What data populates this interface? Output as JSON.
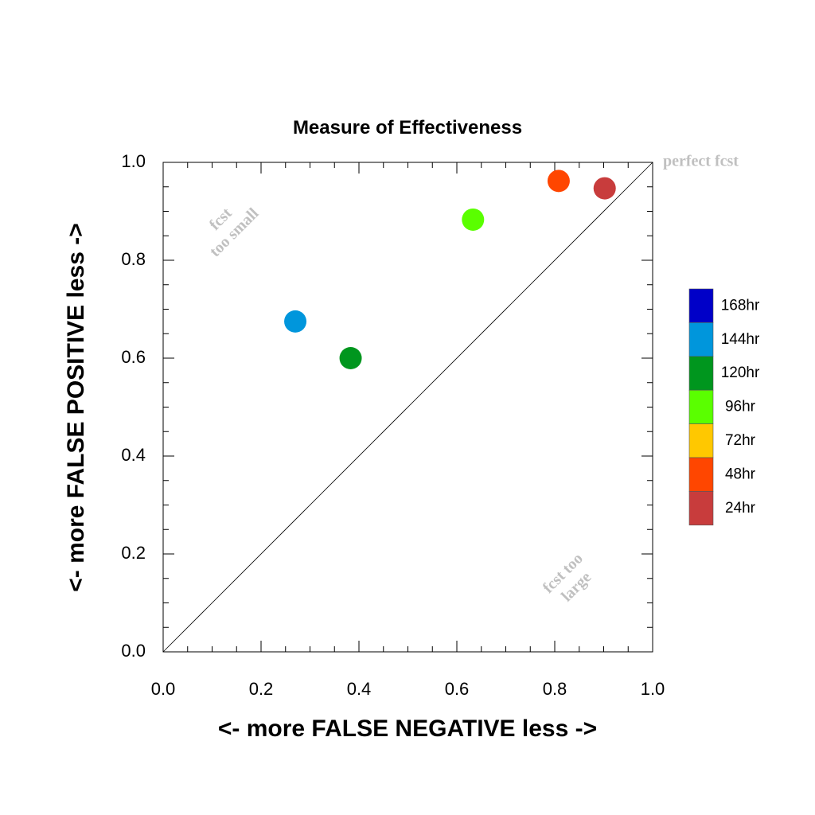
{
  "chart_data": {
    "type": "scatter",
    "title": "Measure of Effectiveness",
    "xlabel": "<- more   FALSE NEGATIVE   less ->",
    "ylabel": "<- more   FALSE POSITIVE   less ->",
    "xlim": [
      0.0,
      1.0
    ],
    "ylim": [
      0.0,
      1.0
    ],
    "xticks": [
      "0.0",
      "0.2",
      "0.4",
      "0.6",
      "0.8",
      "1.0"
    ],
    "yticks": [
      "0.0",
      "0.2",
      "0.4",
      "0.6",
      "0.8",
      "1.0"
    ],
    "grid": false,
    "diagonal_line": true,
    "annotations": {
      "perfect": "perfect fcst",
      "too_small_line1": "fcst",
      "too_small_line2": "too small",
      "too_large_line1": "fcst too",
      "too_large_line2": "large"
    },
    "legend": [
      {
        "label": "168hr",
        "color": "#0000c8"
      },
      {
        "label": "144hr",
        "color": "#0096dc"
      },
      {
        "label": "120hr",
        "color": "#00961e"
      },
      {
        "label": "96hr",
        "color": "#5aff00"
      },
      {
        "label": "72hr",
        "color": "#ffc800"
      },
      {
        "label": "48hr",
        "color": "#ff4600"
      },
      {
        "label": "24hr",
        "color": "#c83c3c"
      }
    ],
    "points": [
      {
        "label": "144hr",
        "x": 0.27,
        "y": 0.675,
        "color": "#0096dc"
      },
      {
        "label": "120hr",
        "x": 0.383,
        "y": 0.6,
        "color": "#00961e"
      },
      {
        "label": "96hr",
        "x": 0.633,
        "y": 0.883,
        "color": "#5aff00"
      },
      {
        "label": "48hr",
        "x": 0.808,
        "y": 0.962,
        "color": "#ff4600"
      },
      {
        "label": "24hr",
        "x": 0.902,
        "y": 0.947,
        "color": "#c83c3c"
      }
    ]
  }
}
